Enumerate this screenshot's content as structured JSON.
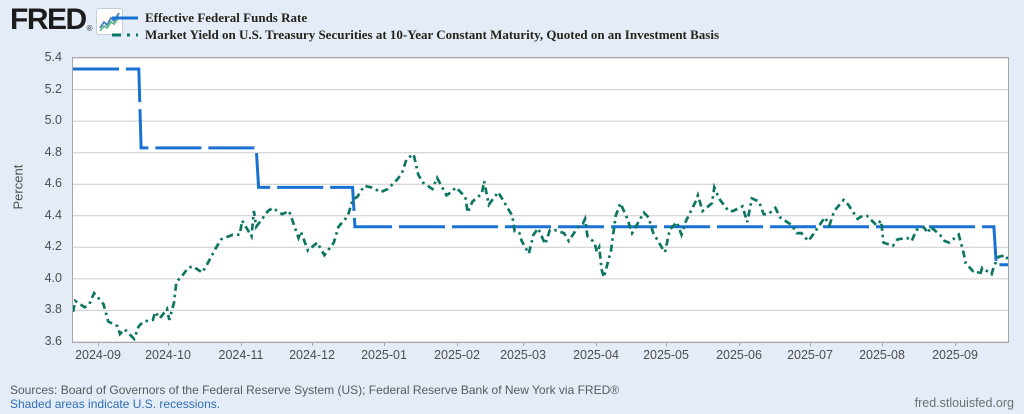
{
  "header": {
    "logo_text": "FRED",
    "logo_reg": "®",
    "legend": [
      {
        "label": "Effective Federal Funds Rate",
        "color": "#1971d2",
        "style": "solid-long"
      },
      {
        "label": "Market Yield on U.S. Treasury Securities at 10-Year Constant Maturity, Quoted on an Investment Basis",
        "color": "#0d7663",
        "style": "dash-dot"
      }
    ]
  },
  "footer": {
    "sources": "Sources: Board of Governors of the Federal Reserve System (US); Federal Reserve Bank of New York via FRED®",
    "recessions_note": "Shaded areas indicate U.S. recessions.",
    "site": "fred.stlouisfed.org"
  },
  "colors": {
    "background": "#e4edf7",
    "plot_background": "#ffffff",
    "gridline": "#cccccc",
    "plot_border": "#a6a6a6",
    "series1": "#1971d2",
    "series2": "#0d7663"
  },
  "chart_data": {
    "type": "line",
    "title": "",
    "xlabel": "",
    "ylabel": "Percent",
    "ylim": [
      3.6,
      5.4
    ],
    "yticks": [
      3.6,
      3.8,
      4.0,
      4.2,
      4.4,
      4.6,
      4.8,
      5.0,
      5.2,
      5.4
    ],
    "grid": true,
    "legend_position": "top-left",
    "x_domain": [
      "2024-08-21",
      "2025-09-23"
    ],
    "xticks": [
      {
        "date": "2024-09-01",
        "label": "2024-09"
      },
      {
        "date": "2024-10-01",
        "label": "2024-10"
      },
      {
        "date": "2024-11-01",
        "label": "2024-11"
      },
      {
        "date": "2024-12-01",
        "label": "2024-12"
      },
      {
        "date": "2025-01-01",
        "label": "2025-01"
      },
      {
        "date": "2025-02-01",
        "label": "2025-02"
      },
      {
        "date": "2025-03-01",
        "label": "2025-03"
      },
      {
        "date": "2025-04-01",
        "label": "2025-04"
      },
      {
        "date": "2025-05-01",
        "label": "2025-05"
      },
      {
        "date": "2025-06-01",
        "label": "2025-06"
      },
      {
        "date": "2025-07-01",
        "label": "2025-07"
      },
      {
        "date": "2025-08-01",
        "label": "2025-08"
      },
      {
        "date": "2025-09-01",
        "label": "2025-09"
      }
    ],
    "series": [
      {
        "name": "Effective Federal Funds Rate",
        "color": "#1971d2",
        "style": "solid-long",
        "points": [
          [
            "2024-08-21",
            5.33
          ],
          [
            "2024-09-18",
            5.33
          ],
          [
            "2024-09-19",
            4.83
          ],
          [
            "2024-11-07",
            4.83
          ],
          [
            "2024-11-08",
            4.58
          ],
          [
            "2024-12-18",
            4.58
          ],
          [
            "2024-12-19",
            4.33
          ],
          [
            "2025-09-17",
            4.33
          ],
          [
            "2025-09-18",
            4.09
          ],
          [
            "2025-09-23",
            4.09
          ]
        ]
      },
      {
        "name": "Market Yield on U.S. Treasury Securities at 10-Year Constant Maturity, Quoted on an Investment Basis",
        "color": "#0d7663",
        "style": "dash-dot",
        "points": [
          [
            "2024-08-21",
            3.79
          ],
          [
            "2024-08-22",
            3.86
          ],
          [
            "2024-08-26",
            3.82
          ],
          [
            "2024-08-28",
            3.84
          ],
          [
            "2024-08-30",
            3.91
          ],
          [
            "2024-09-03",
            3.84
          ],
          [
            "2024-09-05",
            3.73
          ],
          [
            "2024-09-09",
            3.7
          ],
          [
            "2024-09-10",
            3.65
          ],
          [
            "2024-09-12",
            3.68
          ],
          [
            "2024-09-16",
            3.62
          ],
          [
            "2024-09-18",
            3.7
          ],
          [
            "2024-09-20",
            3.73
          ],
          [
            "2024-09-24",
            3.74
          ],
          [
            "2024-09-25",
            3.79
          ],
          [
            "2024-09-27",
            3.75
          ],
          [
            "2024-09-30",
            3.81
          ],
          [
            "2024-10-01",
            3.74
          ],
          [
            "2024-10-03",
            3.85
          ],
          [
            "2024-10-04",
            3.98
          ],
          [
            "2024-10-07",
            4.03
          ],
          [
            "2024-10-09",
            4.07
          ],
          [
            "2024-10-11",
            4.08
          ],
          [
            "2024-10-15",
            4.04
          ],
          [
            "2024-10-17",
            4.09
          ],
          [
            "2024-10-21",
            4.2
          ],
          [
            "2024-10-23",
            4.25
          ],
          [
            "2024-10-28",
            4.28
          ],
          [
            "2024-10-31",
            4.28
          ],
          [
            "2024-11-01",
            4.37
          ],
          [
            "2024-11-05",
            4.27
          ],
          [
            "2024-11-06",
            4.43
          ],
          [
            "2024-11-07",
            4.33
          ],
          [
            "2024-11-12",
            4.43
          ],
          [
            "2024-11-14",
            4.45
          ],
          [
            "2024-11-18",
            4.41
          ],
          [
            "2024-11-21",
            4.43
          ],
          [
            "2024-11-25",
            4.26
          ],
          [
            "2024-11-26",
            4.3
          ],
          [
            "2024-11-29",
            4.18
          ],
          [
            "2024-12-03",
            4.23
          ],
          [
            "2024-12-06",
            4.15
          ],
          [
            "2024-12-10",
            4.23
          ],
          [
            "2024-12-12",
            4.33
          ],
          [
            "2024-12-16",
            4.4
          ],
          [
            "2024-12-18",
            4.5
          ],
          [
            "2024-12-20",
            4.52
          ],
          [
            "2024-12-23",
            4.59
          ],
          [
            "2024-12-26",
            4.58
          ],
          [
            "2024-12-30",
            4.55
          ],
          [
            "2025-01-02",
            4.57
          ],
          [
            "2025-01-06",
            4.63
          ],
          [
            "2025-01-08",
            4.67
          ],
          [
            "2025-01-10",
            4.76
          ],
          [
            "2025-01-13",
            4.79
          ],
          [
            "2025-01-15",
            4.66
          ],
          [
            "2025-01-17",
            4.61
          ],
          [
            "2025-01-21",
            4.57
          ],
          [
            "2025-01-23",
            4.64
          ],
          [
            "2025-01-27",
            4.53
          ],
          [
            "2025-01-29",
            4.55
          ],
          [
            "2025-01-31",
            4.58
          ],
          [
            "2025-02-04",
            4.52
          ],
          [
            "2025-02-05",
            4.42
          ],
          [
            "2025-02-07",
            4.49
          ],
          [
            "2025-02-11",
            4.54
          ],
          [
            "2025-02-12",
            4.62
          ],
          [
            "2025-02-14",
            4.47
          ],
          [
            "2025-02-18",
            4.55
          ],
          [
            "2025-02-20",
            4.5
          ],
          [
            "2025-02-24",
            4.4
          ],
          [
            "2025-02-25",
            4.3
          ],
          [
            "2025-02-27",
            4.29
          ],
          [
            "2025-02-28",
            4.24
          ],
          [
            "2025-03-03",
            4.16
          ],
          [
            "2025-03-05",
            4.28
          ],
          [
            "2025-03-07",
            4.32
          ],
          [
            "2025-03-10",
            4.22
          ],
          [
            "2025-03-12",
            4.31
          ],
          [
            "2025-03-14",
            4.31
          ],
          [
            "2025-03-18",
            4.29
          ],
          [
            "2025-03-20",
            4.24
          ],
          [
            "2025-03-24",
            4.33
          ],
          [
            "2025-03-26",
            4.35
          ],
          [
            "2025-03-27",
            4.38
          ],
          [
            "2025-03-28",
            4.27
          ],
          [
            "2025-03-31",
            4.23
          ],
          [
            "2025-04-01",
            4.17
          ],
          [
            "2025-04-02",
            4.2
          ],
          [
            "2025-04-03",
            4.06
          ],
          [
            "2025-04-04",
            4.01
          ],
          [
            "2025-04-07",
            4.18
          ],
          [
            "2025-04-09",
            4.4
          ],
          [
            "2025-04-11",
            4.48
          ],
          [
            "2025-04-14",
            4.38
          ],
          [
            "2025-04-16",
            4.29
          ],
          [
            "2025-04-21",
            4.42
          ],
          [
            "2025-04-23",
            4.39
          ],
          [
            "2025-04-25",
            4.29
          ],
          [
            "2025-04-29",
            4.19
          ],
          [
            "2025-04-30",
            4.17
          ],
          [
            "2025-05-02",
            4.31
          ],
          [
            "2025-05-05",
            4.36
          ],
          [
            "2025-05-07",
            4.28
          ],
          [
            "2025-05-09",
            4.37
          ],
          [
            "2025-05-13",
            4.49
          ],
          [
            "2025-05-14",
            4.53
          ],
          [
            "2025-05-16",
            4.43
          ],
          [
            "2025-05-20",
            4.48
          ],
          [
            "2025-05-21",
            4.58
          ],
          [
            "2025-05-23",
            4.51
          ],
          [
            "2025-05-27",
            4.43
          ],
          [
            "2025-05-29",
            4.43
          ],
          [
            "2025-06-02",
            4.46
          ],
          [
            "2025-06-04",
            4.36
          ],
          [
            "2025-06-06",
            4.51
          ],
          [
            "2025-06-09",
            4.49
          ],
          [
            "2025-06-11",
            4.41
          ],
          [
            "2025-06-13",
            4.41
          ],
          [
            "2025-06-16",
            4.45
          ],
          [
            "2025-06-18",
            4.39
          ],
          [
            "2025-06-23",
            4.34
          ],
          [
            "2025-06-25",
            4.29
          ],
          [
            "2025-06-27",
            4.29
          ],
          [
            "2025-06-30",
            4.24
          ],
          [
            "2025-07-02",
            4.28
          ],
          [
            "2025-07-07",
            4.39
          ],
          [
            "2025-07-09",
            4.34
          ],
          [
            "2025-07-11",
            4.43
          ],
          [
            "2025-07-15",
            4.5
          ],
          [
            "2025-07-17",
            4.47
          ],
          [
            "2025-07-21",
            4.38
          ],
          [
            "2025-07-23",
            4.4
          ],
          [
            "2025-07-25",
            4.4
          ],
          [
            "2025-07-29",
            4.34
          ],
          [
            "2025-07-31",
            4.37
          ],
          [
            "2025-08-01",
            4.23
          ],
          [
            "2025-08-05",
            4.21
          ],
          [
            "2025-08-07",
            4.25
          ],
          [
            "2025-08-11",
            4.26
          ],
          [
            "2025-08-13",
            4.24
          ],
          [
            "2025-08-15",
            4.31
          ],
          [
            "2025-08-18",
            4.33
          ],
          [
            "2025-08-20",
            4.29
          ],
          [
            "2025-08-21",
            4.33
          ],
          [
            "2025-08-25",
            4.28
          ],
          [
            "2025-08-27",
            4.24
          ],
          [
            "2025-08-29",
            4.23
          ],
          [
            "2025-09-02",
            4.28
          ],
          [
            "2025-09-04",
            4.17
          ],
          [
            "2025-09-05",
            4.1
          ],
          [
            "2025-09-08",
            4.05
          ],
          [
            "2025-09-10",
            4.05
          ],
          [
            "2025-09-11",
            4.02
          ],
          [
            "2025-09-12",
            4.07
          ],
          [
            "2025-09-15",
            4.04
          ],
          [
            "2025-09-16",
            4.03
          ],
          [
            "2025-09-17",
            4.08
          ],
          [
            "2025-09-19",
            4.14
          ],
          [
            "2025-09-22",
            4.15
          ],
          [
            "2025-09-23",
            4.12
          ]
        ]
      }
    ]
  }
}
